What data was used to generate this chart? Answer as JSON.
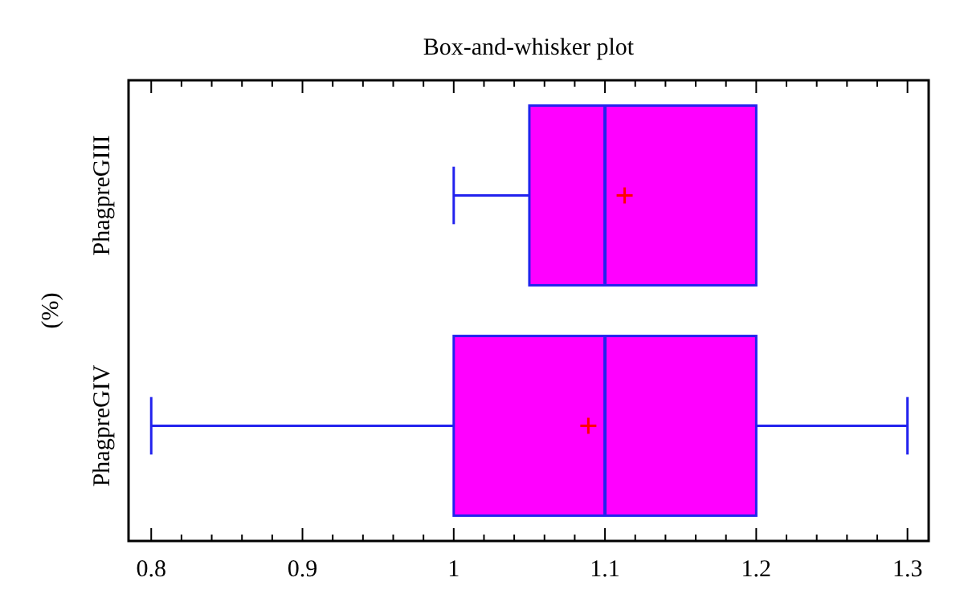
{
  "chart_data": {
    "type": "box",
    "title": "Box-and-whisker plot",
    "ylabel": "(%)",
    "orientation": "horizontal",
    "categories": [
      "PhagpreGIII",
      "PhagpreGIV"
    ],
    "boxes": [
      {
        "low": 1.0,
        "q1": 1.05,
        "median": 1.1,
        "q3": 1.2,
        "high": 1.2,
        "mean": 1.113
      },
      {
        "low": 0.8,
        "q1": 1.0,
        "median": 1.1,
        "q3": 1.2,
        "high": 1.3,
        "mean": 1.089
      }
    ],
    "color": "#ff00ff",
    "grid": false,
    "xlim": [
      0.785,
      1.314
    ],
    "xticks": [
      0.8,
      {
        "value": 0.82,
        "label": null
      },
      {
        "value": 0.84,
        "label": null
      },
      {
        "value": 0.86,
        "label": null
      },
      {
        "value": 0.88,
        "label": null
      },
      0.9,
      {
        "value": 0.92,
        "label": null
      },
      {
        "value": 0.94,
        "label": null
      },
      {
        "value": 0.96,
        "label": null
      },
      {
        "value": 0.98,
        "label": null
      },
      1,
      {
        "value": 1.02,
        "label": null
      },
      {
        "value": 1.04,
        "label": null
      },
      {
        "value": 1.06,
        "label": null
      },
      {
        "value": 1.08,
        "label": null
      },
      1.1,
      {
        "value": 1.12,
        "label": null
      },
      {
        "value": 1.14,
        "label": null
      },
      {
        "value": 1.16,
        "label": null
      },
      {
        "value": 1.18,
        "label": null
      },
      1.2,
      {
        "value": 1.22,
        "label": null
      },
      {
        "value": 1.24,
        "label": null
      },
      {
        "value": 1.26,
        "label": null
      },
      {
        "value": 1.28,
        "label": null
      },
      1.3
    ]
  }
}
